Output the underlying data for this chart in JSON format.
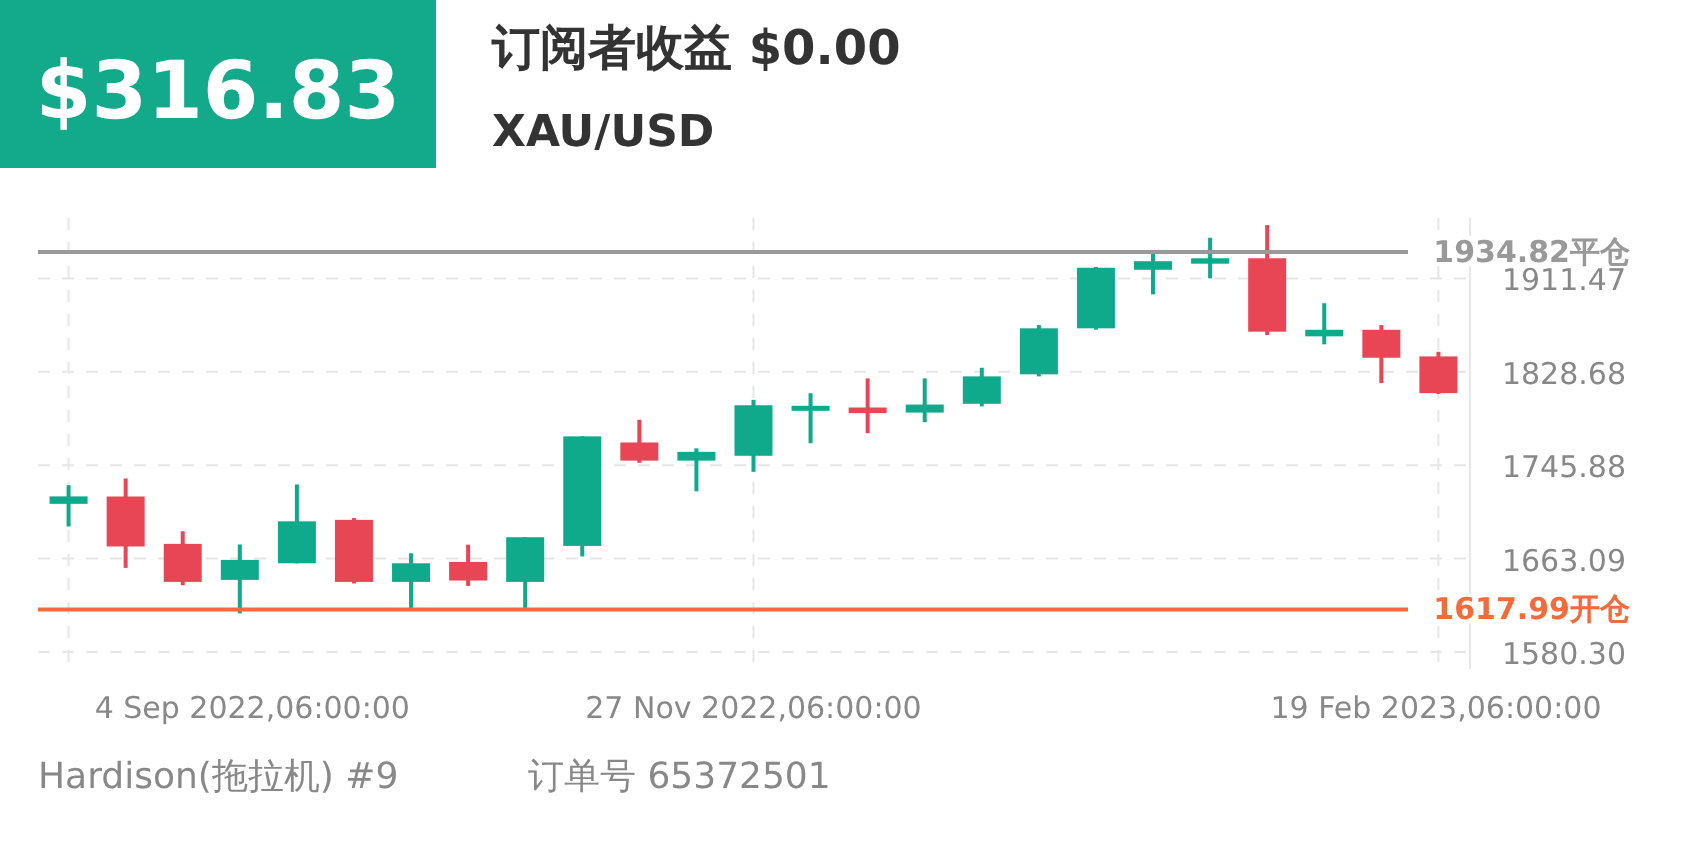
{
  "chart_data": {
    "type": "candlestick",
    "title": "订阅者收益 $0.00",
    "subtitle": "XAU/USD",
    "annotations": [
      "$316.83",
      "Hardison(拖拉机) #9",
      "订单号 65372501"
    ],
    "x": [
      "2022-09-04T06:00",
      "2022-09-11T06:00",
      "2022-09-18T06:00",
      "2022-09-25T06:00",
      "2022-10-02T06:00",
      "2022-10-09T06:00",
      "2022-10-16T06:00",
      "2022-10-23T06:00",
      "2022-10-30T06:00",
      "2022-11-06T06:00",
      "2022-11-13T06:00",
      "2022-11-20T06:00",
      "2022-11-27T06:00",
      "2022-12-04T06:00",
      "2022-12-11T06:00",
      "2022-12-18T06:00",
      "2022-12-25T06:00",
      "2023-01-01T06:00",
      "2023-01-08T06:00",
      "2023-01-15T06:00",
      "2023-01-22T06:00",
      "2023-01-29T06:00",
      "2023-02-05T06:00",
      "2023-02-12T06:00",
      "2023-02-19T06:00"
    ],
    "ohlc": [
      [
        1711.6,
        1728.1,
        1691.5,
        1718.2
      ],
      [
        1718.1,
        1734.1,
        1654.8,
        1673.8
      ],
      [
        1676.1,
        1687.3,
        1639.4,
        1642.4
      ],
      [
        1644.2,
        1675.6,
        1614.5,
        1661.9
      ],
      [
        1658.9,
        1728.8,
        1658.9,
        1696.1
      ],
      [
        1697.4,
        1699,
        1641,
        1642.4
      ],
      [
        1642.4,
        1667.8,
        1619.3,
        1658.9
      ],
      [
        1660.1,
        1675.4,
        1638.8,
        1643.6
      ],
      [
        1642.4,
        1682,
        1619.3,
        1682
      ],
      [
        1674.3,
        1771.5,
        1665,
        1771.4
      ],
      [
        1766,
        1786.1,
        1748,
        1749.9
      ],
      [
        1749.9,
        1760.8,
        1722.7,
        1757.7
      ],
      [
        1754.2,
        1803.8,
        1740,
        1799
      ],
      [
        1796,
        1809.7,
        1765.3,
        1798.5
      ],
      [
        1797,
        1822.8,
        1774.2,
        1792
      ],
      [
        1792.5,
        1822.8,
        1784,
        1799.6
      ],
      [
        1800.3,
        1832.2,
        1798,
        1824.6
      ],
      [
        1826.4,
        1870.1,
        1824.6,
        1867.2
      ],
      [
        1867.2,
        1921.5,
        1866,
        1920.9
      ],
      [
        1919.1,
        1935,
        1897.3,
        1926.7
      ],
      [
        1924.5,
        1947.5,
        1911.5,
        1929.3
      ],
      [
        1929.3,
        1958.7,
        1861.2,
        1864.2
      ],
      [
        1860.1,
        1889.5,
        1853,
        1865.9
      ],
      [
        1865.9,
        1870.1,
        1818.6,
        1841.1
      ],
      [
        1842.3,
        1846.4,
        1809,
        1809.7
      ]
    ],
    "colors": [
      "#0fa98b",
      "#e84655",
      "#e84655",
      "#0fa98b",
      "#0fa98b",
      "#e84655",
      "#0fa98b",
      "#e84655",
      "#0fa98b",
      "#0fa98b",
      "#e84655",
      "#0fa98b",
      "#0fa98b",
      "#0fa98b",
      "#e84655",
      "#0fa98b",
      "#0fa98b",
      "#0fa98b",
      "#0fa98b",
      "#0fa98b",
      "#0fa98b",
      "#e84655",
      "#0fa98b",
      "#e84655",
      "#e84655"
    ],
    "xlim": [
      "2022-08-31T12:00",
      "2023-02-23T03:00"
    ],
    "xticks": [
      {
        "value": "2022-09-04T06:00",
        "label": "4 Sep 2022,06:00:00"
      },
      {
        "value": "2022-11-27T06:00",
        "label": "27 Nov 2022,06:00:00"
      },
      {
        "value": "2023-02-19T06:00",
        "label": "19 Feb 2023,06:00:00"
      }
    ],
    "ylim": [
      1565,
      1965
    ],
    "yticks": [
      {
        "value": 1580.3,
        "label": "1580.30"
      },
      1663.09,
      1745.88,
      1828.68,
      1911.47
    ],
    "grid": true,
    "ref_lines": [
      {
        "axis": "y",
        "value": 1934.82,
        "label": "1934.82平仓",
        "color": "#999999"
      },
      {
        "axis": "y",
        "value": 1617.99,
        "label": "1617.99开仓",
        "color": "#f26b3a"
      }
    ]
  }
}
